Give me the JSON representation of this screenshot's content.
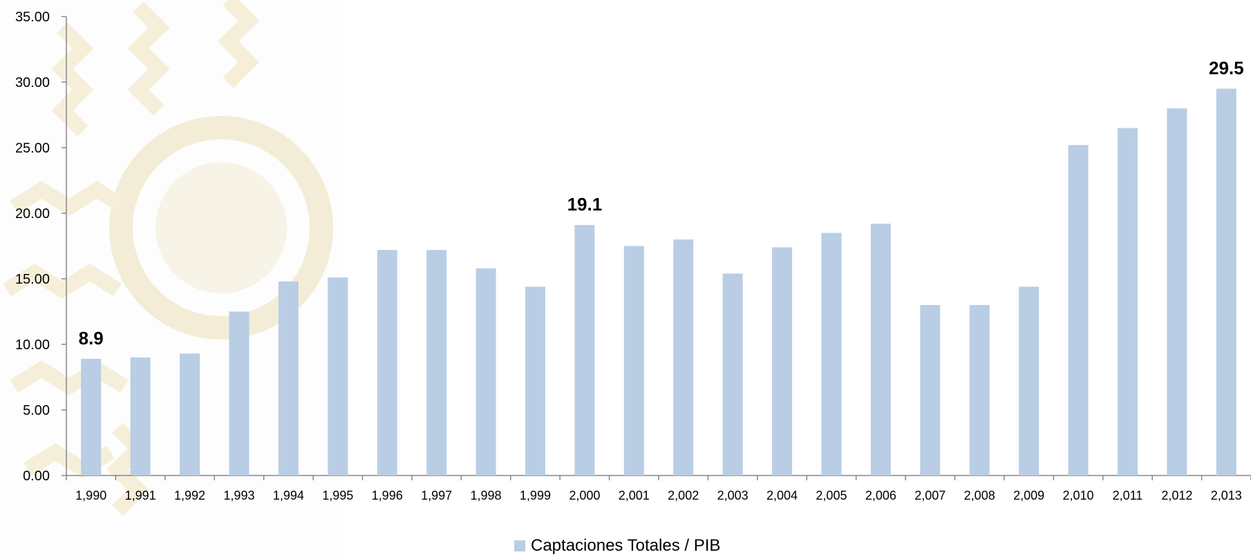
{
  "chart_data": {
    "type": "bar",
    "categories": [
      "1,990",
      "1,991",
      "1,992",
      "1,993",
      "1,994",
      "1,995",
      "1,996",
      "1,997",
      "1,998",
      "1,999",
      "2,000",
      "2,001",
      "2,002",
      "2,003",
      "2,004",
      "2,005",
      "2,006",
      "2,007",
      "2,008",
      "2,009",
      "2,010",
      "2,011",
      "2,012",
      "2,013"
    ],
    "series": [
      {
        "name": "Captaciones Totales / PIB",
        "values": [
          8.9,
          9.0,
          9.3,
          12.5,
          14.8,
          15.1,
          17.2,
          17.2,
          15.8,
          14.4,
          19.1,
          17.5,
          18.0,
          15.4,
          17.4,
          18.5,
          19.2,
          13.0,
          13.0,
          14.4,
          25.2,
          26.5,
          28.0,
          29.5
        ]
      }
    ],
    "data_labels": [
      {
        "category": "1,990",
        "text": "8.9"
      },
      {
        "category": "2,000",
        "text": "19.1"
      },
      {
        "category": "2,013",
        "text": "29.5"
      }
    ],
    "y_ticks": [
      "0.00",
      "5.00",
      "10.00",
      "15.00",
      "20.00",
      "25.00",
      "30.00",
      "35.00"
    ],
    "ylim": [
      0,
      35
    ],
    "title": "",
    "xlabel": "",
    "ylabel": "",
    "grid": false,
    "legend_position": "bottom-center",
    "colors": {
      "bar": "#b9cde5",
      "axis": "#868686",
      "text": "#000000"
    }
  }
}
